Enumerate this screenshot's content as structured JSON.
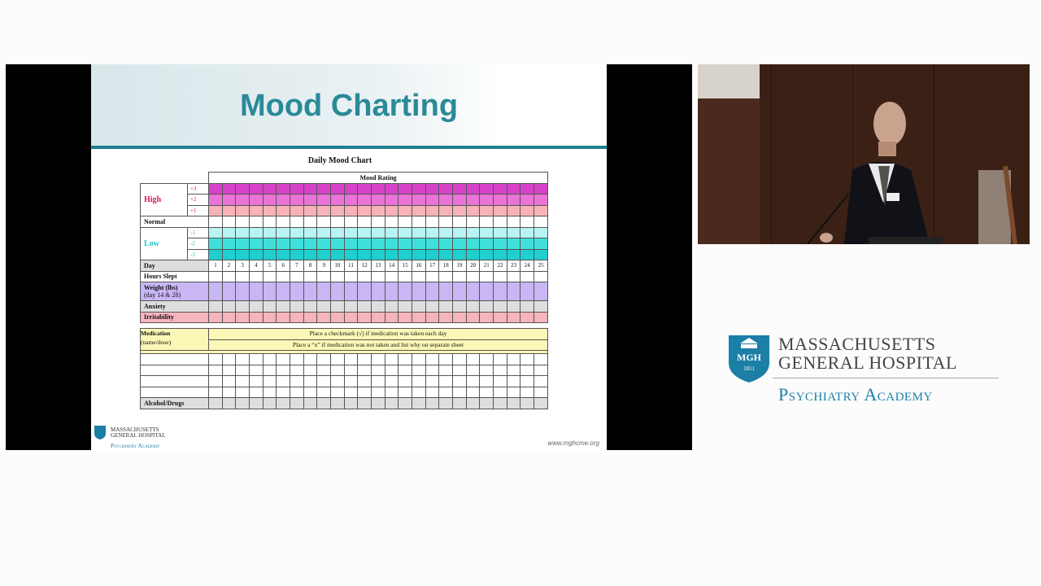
{
  "slide": {
    "title": "Mood Charting",
    "chart_title": "Daily Mood Chart",
    "mood_rating_header": "Mood Rating",
    "rows": {
      "high": "High",
      "normal": "Normal",
      "low": "Low",
      "day": "Day",
      "hours_slept": "Hours Slept",
      "weight": "Weight (lbs)",
      "weight_sub": "(day 14 & 28)",
      "anxiety": "Anxiety",
      "irritability": "Irritability",
      "medication": "Medication",
      "medication_sub": "(name/dose)",
      "alcohol_drugs": "Alcohol/Drugs"
    },
    "scale": {
      "p3": "+3",
      "p2": "+2",
      "p1": "+1",
      "m1": "-1",
      "m2": "-2",
      "m3": "-3"
    },
    "days": [
      "1",
      "2",
      "3",
      "4",
      "5",
      "6",
      "7",
      "8",
      "9",
      "10",
      "11",
      "12",
      "13",
      "14",
      "15",
      "16",
      "17",
      "18",
      "19",
      "20",
      "21",
      "22",
      "23",
      "24",
      "25"
    ],
    "medication_note_1": "Place a checkmark (√) if medication was taken each day",
    "medication_note_2": "Place a “x” if medication was not taken and list why on separate sheet",
    "logo": {
      "line1": "MASSACHUSETTS",
      "line2": "GENERAL HOSPITAL",
      "line3": "Psychiatry Academy"
    },
    "url": "www.mghcme.org"
  },
  "brand": {
    "shield_text": "MGH",
    "shield_year": "1811",
    "line1": "MASSACHUSETTS",
    "line2": "GENERAL HOSPITAL",
    "line3": "Psychiatry Academy"
  },
  "colors": {
    "title": "#2a8a98",
    "high": "#e0185c",
    "low": "#1fc6c8",
    "brand_blue": "#1b7fa6"
  }
}
